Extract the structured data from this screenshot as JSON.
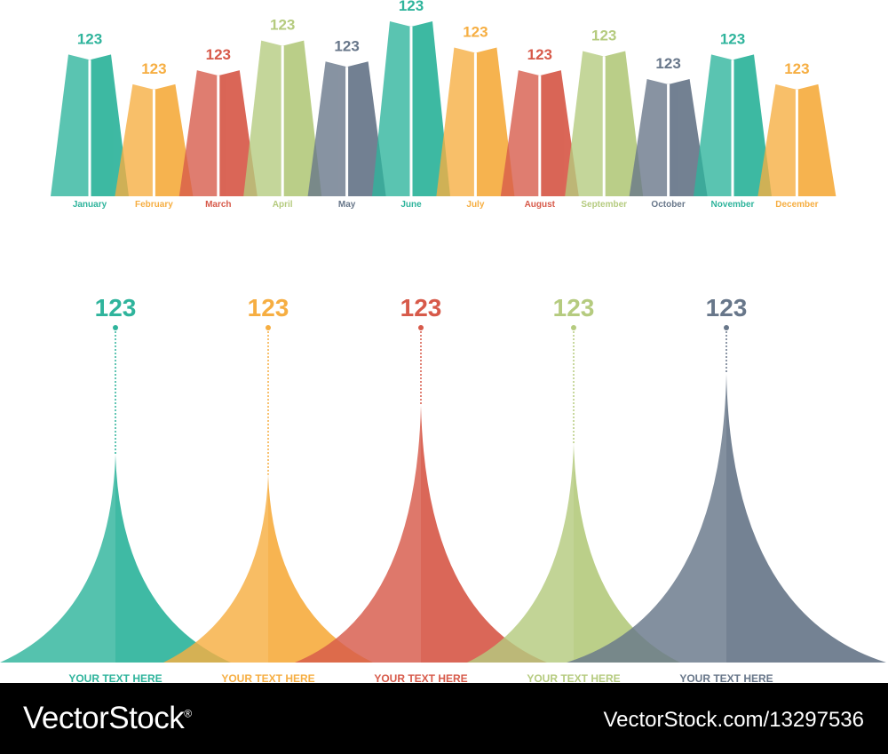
{
  "colors": {
    "teal": "#2fb49c",
    "orange": "#f6ae42",
    "red": "#d75a4a",
    "green": "#b5cb7f",
    "slate": "#68778a"
  },
  "chart_data": [
    {
      "type": "bar",
      "categories": [
        "January",
        "February",
        "March",
        "April",
        "May",
        "June",
        "July",
        "August",
        "September",
        "October",
        "November",
        "December"
      ],
      "values": [
        123,
        123,
        123,
        123,
        123,
        123,
        123,
        123,
        123,
        123,
        123,
        123
      ],
      "bar_heights_relative": [
        0.81,
        0.64,
        0.72,
        0.89,
        0.77,
        1.0,
        0.85,
        0.72,
        0.83,
        0.67,
        0.81,
        0.64
      ],
      "bar_colors": [
        "teal",
        "orange",
        "red",
        "green",
        "slate",
        "teal",
        "orange",
        "red",
        "green",
        "slate",
        "teal",
        "orange"
      ],
      "title": "",
      "xlabel": "",
      "ylabel": "",
      "grid": false
    },
    {
      "type": "area",
      "categories": [
        "YOUR TEXT HERE",
        "YOUR TEXT HERE",
        "YOUR TEXT HERE",
        "YOUR TEXT HERE",
        "YOUR TEXT HERE"
      ],
      "values": [
        123,
        123,
        123,
        123,
        123
      ],
      "peak_heights_relative": [
        0.72,
        0.65,
        0.89,
        0.76,
        1.0
      ],
      "peak_colors": [
        "teal",
        "orange",
        "red",
        "green",
        "slate"
      ],
      "title": "",
      "xlabel": "",
      "ylabel": "",
      "grid": false
    }
  ],
  "footer": {
    "brand": "VectorStock",
    "registered_mark": "®",
    "reference": "VectorStock.com/13297536"
  }
}
